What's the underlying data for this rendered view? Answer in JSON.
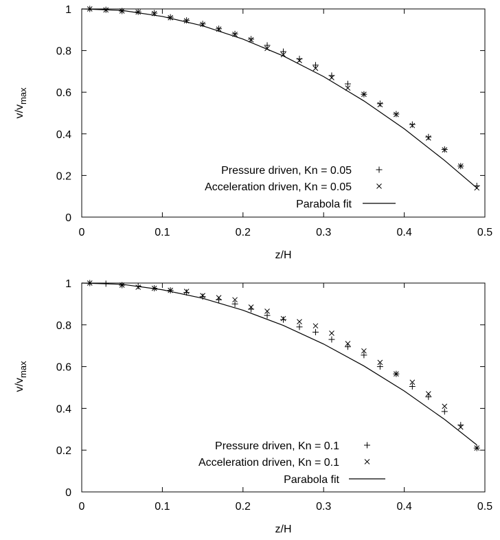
{
  "chart_data": [
    {
      "type": "scatter",
      "xlabel": "z/H",
      "ylabel": "v/v",
      "ylabel_sub": "max",
      "xlim": [
        0,
        0.5
      ],
      "ylim": [
        0,
        1
      ],
      "xticks": [
        0,
        0.1,
        0.2,
        0.3,
        0.4,
        0.5
      ],
      "yticks": [
        0,
        0.2,
        0.4,
        0.6,
        0.8,
        1
      ],
      "xtick_labels": [
        "0",
        "0.1",
        "0.2",
        "0.3",
        "0.4",
        "0.5"
      ],
      "ytick_labels": [
        "0",
        "0.2",
        "0.4",
        "0.6",
        "0.8",
        "1"
      ],
      "grid": false,
      "legend_position": "bottom-right",
      "series": [
        {
          "name": "Pressure driven, Kn = 0.05",
          "marker": "plus",
          "x": [
            0.01,
            0.03,
            0.05,
            0.07,
            0.09,
            0.11,
            0.13,
            0.15,
            0.17,
            0.19,
            0.21,
            0.23,
            0.25,
            0.27,
            0.29,
            0.31,
            0.33,
            0.35,
            0.37,
            0.39,
            0.41,
            0.43,
            0.45,
            0.47,
            0.49
          ],
          "y": [
            1.0,
            0.996,
            0.99,
            0.986,
            0.98,
            0.96,
            0.945,
            0.928,
            0.905,
            0.88,
            0.855,
            0.825,
            0.795,
            0.76,
            0.73,
            0.68,
            0.64,
            0.59,
            0.545,
            0.495,
            0.445,
            0.385,
            0.325,
            0.245,
            0.15
          ]
        },
        {
          "name": "Acceleration driven, Kn = 0.05",
          "marker": "cross",
          "x": [
            0.01,
            0.03,
            0.05,
            0.07,
            0.09,
            0.11,
            0.13,
            0.15,
            0.17,
            0.19,
            0.21,
            0.23,
            0.25,
            0.27,
            0.29,
            0.31,
            0.33,
            0.35,
            0.37,
            0.39,
            0.41,
            0.43,
            0.45,
            0.47,
            0.49
          ],
          "y": [
            1.0,
            0.995,
            0.99,
            0.985,
            0.978,
            0.958,
            0.943,
            0.926,
            0.903,
            0.878,
            0.852,
            0.81,
            0.78,
            0.752,
            0.715,
            0.67,
            0.62,
            0.59,
            0.54,
            0.493,
            0.44,
            0.38,
            0.323,
            0.245,
            0.14
          ]
        },
        {
          "name": "Parabola fit",
          "marker": "line",
          "x": [
            0.0,
            0.05,
            0.1,
            0.15,
            0.2,
            0.25,
            0.3,
            0.35,
            0.4,
            0.45,
            0.49
          ],
          "y": [
            1.0,
            0.993,
            0.964,
            0.919,
            0.855,
            0.774,
            0.675,
            0.558,
            0.424,
            0.272,
            0.14
          ]
        }
      ]
    },
    {
      "type": "scatter",
      "xlabel": "z/H",
      "ylabel": "v/v",
      "ylabel_sub": "max",
      "xlim": [
        0,
        0.5
      ],
      "ylim": [
        0,
        1
      ],
      "xticks": [
        0,
        0.1,
        0.2,
        0.3,
        0.4,
        0.5
      ],
      "yticks": [
        0,
        0.2,
        0.4,
        0.6,
        0.8,
        1
      ],
      "xtick_labels": [
        "0",
        "0.1",
        "0.2",
        "0.3",
        "0.4",
        "0.5"
      ],
      "ytick_labels": [
        "0",
        "0.2",
        "0.4",
        "0.6",
        "0.8",
        "1"
      ],
      "grid": false,
      "legend_position": "bottom-right",
      "series": [
        {
          "name": "Pressure driven, Kn = 0.1",
          "marker": "plus",
          "x": [
            0.01,
            0.03,
            0.05,
            0.07,
            0.09,
            0.11,
            0.13,
            0.15,
            0.17,
            0.19,
            0.21,
            0.23,
            0.25,
            0.27,
            0.29,
            0.31,
            0.33,
            0.35,
            0.37,
            0.39,
            0.41,
            0.43,
            0.45,
            0.47,
            0.49
          ],
          "y": [
            1.0,
            0.997,
            0.99,
            0.985,
            0.975,
            0.965,
            0.955,
            0.935,
            0.92,
            0.9,
            0.875,
            0.845,
            0.825,
            0.79,
            0.765,
            0.73,
            0.695,
            0.655,
            0.6,
            0.565,
            0.505,
            0.455,
            0.385,
            0.32,
            0.21
          ]
        },
        {
          "name": "Acceleration driven, Kn = 0.1",
          "marker": "cross",
          "x": [
            0.01,
            0.05,
            0.07,
            0.09,
            0.11,
            0.13,
            0.15,
            0.17,
            0.19,
            0.21,
            0.23,
            0.25,
            0.27,
            0.29,
            0.31,
            0.33,
            0.35,
            0.37,
            0.39,
            0.41,
            0.43,
            0.45,
            0.47,
            0.49
          ],
          "y": [
            1.0,
            0.99,
            0.98,
            0.975,
            0.965,
            0.96,
            0.94,
            0.93,
            0.92,
            0.885,
            0.865,
            0.83,
            0.815,
            0.795,
            0.76,
            0.71,
            0.675,
            0.62,
            0.565,
            0.525,
            0.47,
            0.41,
            0.31,
            0.21
          ]
        },
        {
          "name": "Parabola fit",
          "marker": "line",
          "x": [
            0.0,
            0.05,
            0.1,
            0.15,
            0.2,
            0.25,
            0.3,
            0.35,
            0.4,
            0.45,
            0.49
          ],
          "y": [
            1.0,
            0.994,
            0.968,
            0.927,
            0.87,
            0.797,
            0.708,
            0.603,
            0.483,
            0.347,
            0.225
          ]
        }
      ]
    }
  ]
}
